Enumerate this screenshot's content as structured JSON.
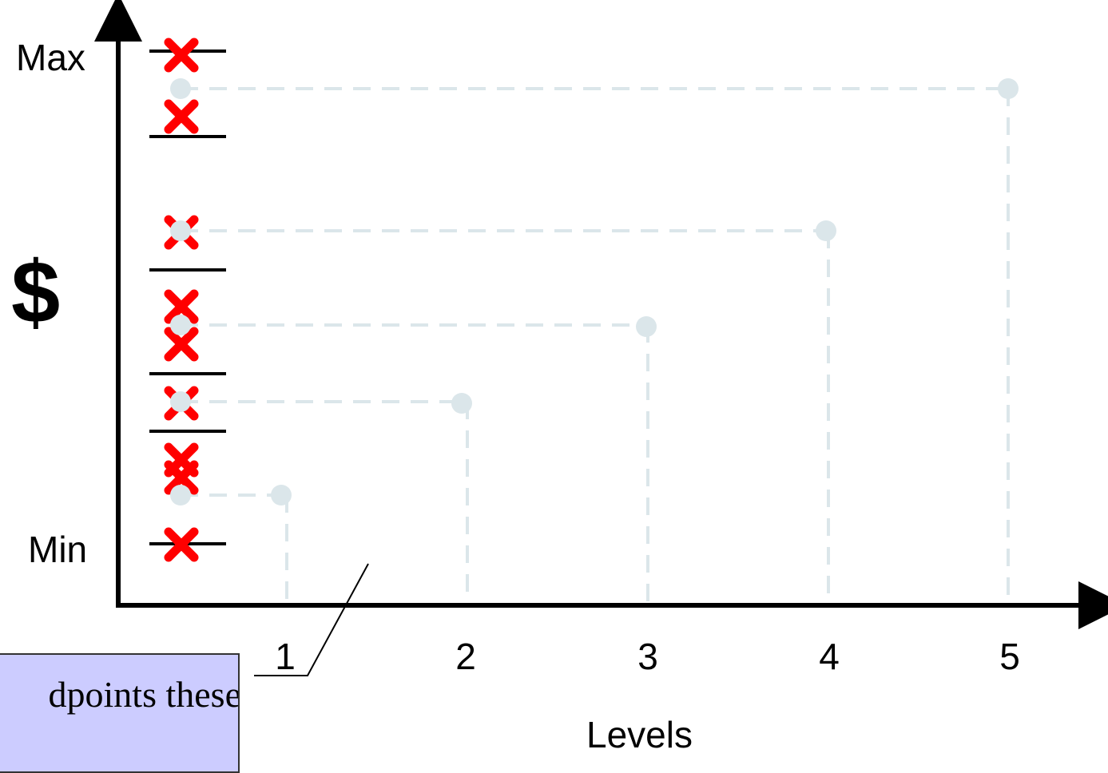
{
  "y_axis": {
    "max_label": "Max",
    "min_label": "Min",
    "title": "$"
  },
  "x_axis": {
    "title": "Levels",
    "ticks": [
      "1",
      "2",
      "3",
      "4",
      "5"
    ]
  },
  "callout": {
    "text": "dpoints these"
  },
  "colors": {
    "axis": "#000000",
    "guide": "#dbe6ea",
    "marker": "#ff0000",
    "callout_bg": "#ccccff"
  },
  "chart_data": {
    "type": "scatter",
    "xlabel": "Levels",
    "ylabel": "$",
    "x": [
      1,
      2,
      3,
      4,
      5
    ],
    "level_points": [
      {
        "level": 1
      },
      {
        "level": 2
      },
      {
        "level": 3
      },
      {
        "level": 4
      },
      {
        "level": 5
      }
    ],
    "grid": false
  }
}
